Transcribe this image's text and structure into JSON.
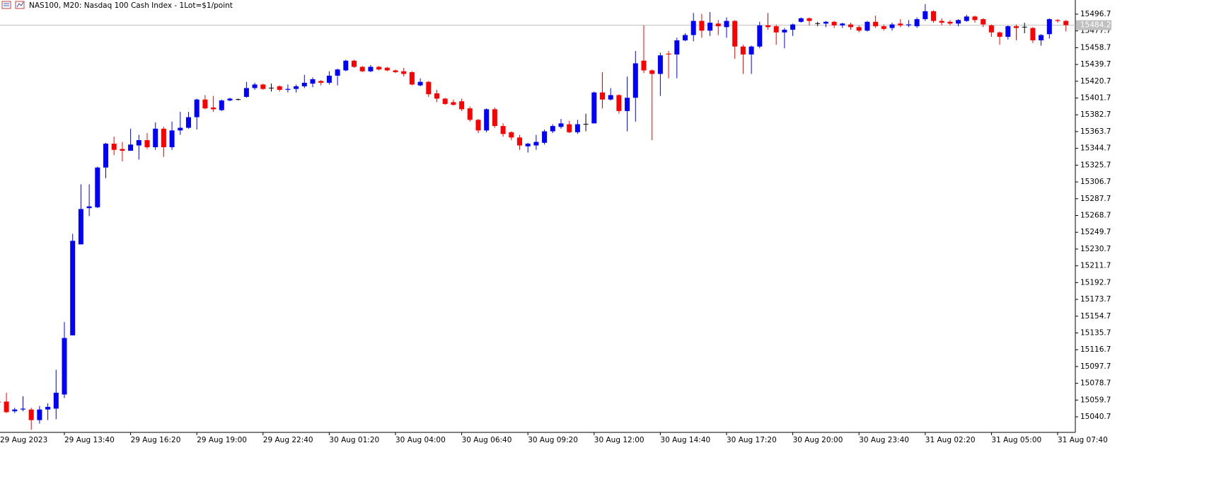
{
  "chart_data": {
    "type": "candlestick",
    "title": "NAS100, M20:  Nasdaq 100 Cash Index - 1Lot=$1/point",
    "categories": [
      "29 Aug 2023",
      null,
      null,
      null,
      null,
      null,
      null,
      null,
      "29 Aug 13:40",
      null,
      null,
      null,
      null,
      null,
      null,
      null,
      "29 Aug 16:20",
      null,
      null,
      null,
      null,
      null,
      null,
      null,
      "29 Aug 19:00",
      null,
      null,
      null,
      null,
      null,
      null,
      null,
      "29 Aug 22:40",
      null,
      null,
      null,
      null,
      null,
      null,
      null,
      "30 Aug 01:20",
      null,
      null,
      null,
      null,
      null,
      null,
      null,
      "30 Aug 04:00",
      null,
      null,
      null,
      null,
      null,
      null,
      null,
      "30 Aug 06:40",
      null,
      null,
      null,
      null,
      null,
      null,
      null,
      "30 Aug 09:20",
      null,
      null,
      null,
      null,
      null,
      null,
      null,
      "30 Aug 12:00",
      null,
      null,
      null,
      null,
      null,
      null,
      null,
      "30 Aug 14:40",
      null,
      null,
      null,
      null,
      null,
      null,
      null,
      "30 Aug 17:20",
      null,
      null,
      null,
      null,
      null,
      null,
      null,
      "30 Aug 20:00",
      null,
      null,
      null,
      null,
      null,
      null,
      null,
      "30 Aug 23:40",
      null,
      null,
      null,
      null,
      null,
      null,
      null,
      "31 Aug 02:20",
      null,
      null,
      null,
      null,
      null,
      null,
      null,
      "31 Aug 05:00",
      null,
      null,
      null,
      null,
      null,
      null,
      null,
      "31 Aug 07:40",
      null
    ],
    "open": [
      15058,
      15058,
      15047,
      15049,
      15049,
      15037,
      15049,
      15050,
      15066,
      15133,
      15236,
      15277,
      15278,
      15323,
      15350,
      15344,
      15342,
      15348,
      15354,
      15346,
      15367,
      15346,
      15365,
      15368,
      15380,
      15400,
      15391,
      15388,
      15399,
      15400,
      15403,
      15413,
      15417,
      15413,
      15415,
      15411,
      15412,
      15415,
      15418,
      15421,
      15419,
      15427,
      15433,
      15444,
      15437,
      15432,
      15437,
      15436,
      15433,
      15432,
      15431,
      15416,
      15420,
      15407,
      15401,
      15397,
      15398,
      15390,
      15377,
      15365,
      15389,
      15370,
      15363,
      15357,
      15347,
      15348,
      15351,
      15364,
      15369,
      15372,
      15363,
      15372,
      15373,
      15408,
      15400,
      15405,
      15387,
      15402,
      15444,
      15433,
      15429,
      15452,
      15451,
      15467,
      15473,
      15489,
      15478,
      15486,
      15482,
      15489,
      15460,
      15451,
      15460,
      15484,
      15483,
      15476,
      15479,
      15488,
      15492,
      15486,
      15486,
      15488,
      15484,
      15485,
      15482,
      15478,
      15488,
      15483,
      15481,
      15486,
      15484,
      15483,
      15491,
      15500,
      15489,
      15488,
      15486,
      15489,
      15494,
      15491,
      15484,
      15476,
      15471,
      15483,
      15482,
      15481,
      15467,
      15474,
      15490,
      15489
    ],
    "high": [
      15059,
      15068,
      15051,
      15064,
      15051,
      15053,
      15056,
      15094,
      15148,
      15248,
      15304,
      15304,
      15324,
      15351,
      15358,
      15352,
      15367,
      15360,
      15362,
      15374,
      15369,
      15375,
      15386,
      15386,
      15401,
      15405,
      15404,
      15400,
      15402,
      15401,
      15420,
      15419,
      15418,
      15418,
      15416,
      15417,
      15417,
      15428,
      15425,
      15422,
      15432,
      15435,
      15445,
      15445,
      15438,
      15439,
      15438,
      15437,
      15434,
      15436,
      15432,
      15424,
      15421,
      15411,
      15402,
      15400,
      15401,
      15392,
      15378,
      15390,
      15391,
      15373,
      15364,
      15360,
      15351,
      15360,
      15366,
      15372,
      15378,
      15376,
      15377,
      15384,
      15409,
      15431,
      15413,
      15406,
      15426,
      15455,
      15484,
      15434,
      15453,
      15455,
      15470,
      15475,
      15498,
      15497,
      15499,
      15490,
      15493,
      15490,
      15462,
      15461,
      15488,
      15498,
      15485,
      15481,
      15486,
      15493,
      15493,
      15488,
      15489,
      15489,
      15487,
      15487,
      15484,
      15489,
      15495,
      15485,
      15487,
      15491,
      15490,
      15493,
      15508,
      15501,
      15492,
      15490,
      15491,
      15496,
      15495,
      15492,
      15485,
      15477,
      15484,
      15485,
      15487,
      15482,
      15474,
      15492,
      15491,
      15490
    ],
    "low": [
      15056,
      15045,
      15045,
      15047,
      15026,
      15033,
      15037,
      15038,
      15062,
      15133,
      15236,
      15268,
      15277,
      15311,
      15337,
      15330,
      15342,
      15332,
      15344,
      15343,
      15335,
      15343,
      15360,
      15367,
      15366,
      15389,
      15386,
      15387,
      15398,
      15399,
      15402,
      15411,
      15411,
      15409,
      15409,
      15408,
      15408,
      15413,
      15414,
      15416,
      15417,
      15416,
      15432,
      15436,
      15431,
      15431,
      15433,
      15432,
      15430,
      15426,
      15416,
      15415,
      15403,
      15397,
      15394,
      15393,
      15387,
      15375,
      15362,
      15363,
      15368,
      15358,
      15354,
      15343,
      15340,
      15343,
      15349,
      15362,
      15367,
      15362,
      15361,
      15364,
      15373,
      15390,
      15399,
      15384,
      15364,
      15375,
      15430,
      15354,
      15404,
      15424,
      15424,
      15466,
      15466,
      15470,
      15472,
      15473,
      15470,
      15446,
      15429,
      15429,
      15458,
      15479,
      15462,
      15458,
      15472,
      15487,
      15484,
      15483,
      15482,
      15481,
      15481,
      15479,
      15476,
      15477,
      15481,
      15478,
      15478,
      15482,
      15482,
      15481,
      15489,
      15487,
      15484,
      15484,
      15483,
      15488,
      15487,
      15482,
      15471,
      15462,
      15468,
      15467,
      15475,
      15464,
      15461,
      15469,
      15487,
      15477
    ],
    "close": [
      15057,
      15046,
      15049,
      15050,
      15037,
      15049,
      15052,
      15068,
      15130,
      15240,
      15276,
      15279,
      15323,
      15350,
      15343,
      15342,
      15349,
      15354,
      15346,
      15367,
      15346,
      15365,
      15368,
      15380,
      15400,
      15390,
      15389,
      15399,
      15401,
      15400,
      15413,
      15417,
      15412,
      15413,
      15411,
      15412,
      15415,
      15419,
      15423,
      15419,
      15427,
      15434,
      15444,
      15437,
      15432,
      15437,
      15434,
      15433,
      15431,
      15429,
      15417,
      15420,
      15406,
      15401,
      15395,
      15394,
      15389,
      15377,
      15365,
      15389,
      15370,
      15361,
      15357,
      15348,
      15350,
      15352,
      15364,
      15370,
      15373,
      15363,
      15372,
      15372,
      15408,
      15400,
      15405,
      15387,
      15402,
      15441,
      15433,
      15429,
      15450,
      15451,
      15467,
      15473,
      15489,
      15478,
      15487,
      15483,
      15489,
      15460,
      15451,
      15460,
      15484,
      15482,
      15476,
      15479,
      15485,
      15492,
      15489,
      15486,
      15488,
      15484,
      15486,
      15482,
      15478,
      15488,
      15483,
      15480,
      15485,
      15484,
      15485,
      15491,
      15500,
      15489,
      15487,
      15486,
      15490,
      15494,
      15490,
      15485,
      15476,
      15471,
      15483,
      15481,
      15482,
      15467,
      15473,
      15491,
      15489,
      15484.2
    ],
    "last_price": 15484.2,
    "bull_color": "#0000ff",
    "bear_color": "#ff0000",
    "doji_color": "#000000",
    "last_price_color": "#c0c0c0",
    "ylim": [
      15023.1,
      15512.7
    ],
    "yticks": [
      15040.7,
      15059.7,
      15078.7,
      15097.7,
      15116.7,
      15135.7,
      15154.7,
      15173.7,
      15192.7,
      15211.7,
      15230.7,
      15249.7,
      15268.7,
      15287.7,
      15306.7,
      15325.7,
      15344.7,
      15363.7,
      15382.7,
      15401.7,
      15420.7,
      15439.7,
      15458.7,
      15477.7,
      15496.7
    ],
    "grid": false
  }
}
